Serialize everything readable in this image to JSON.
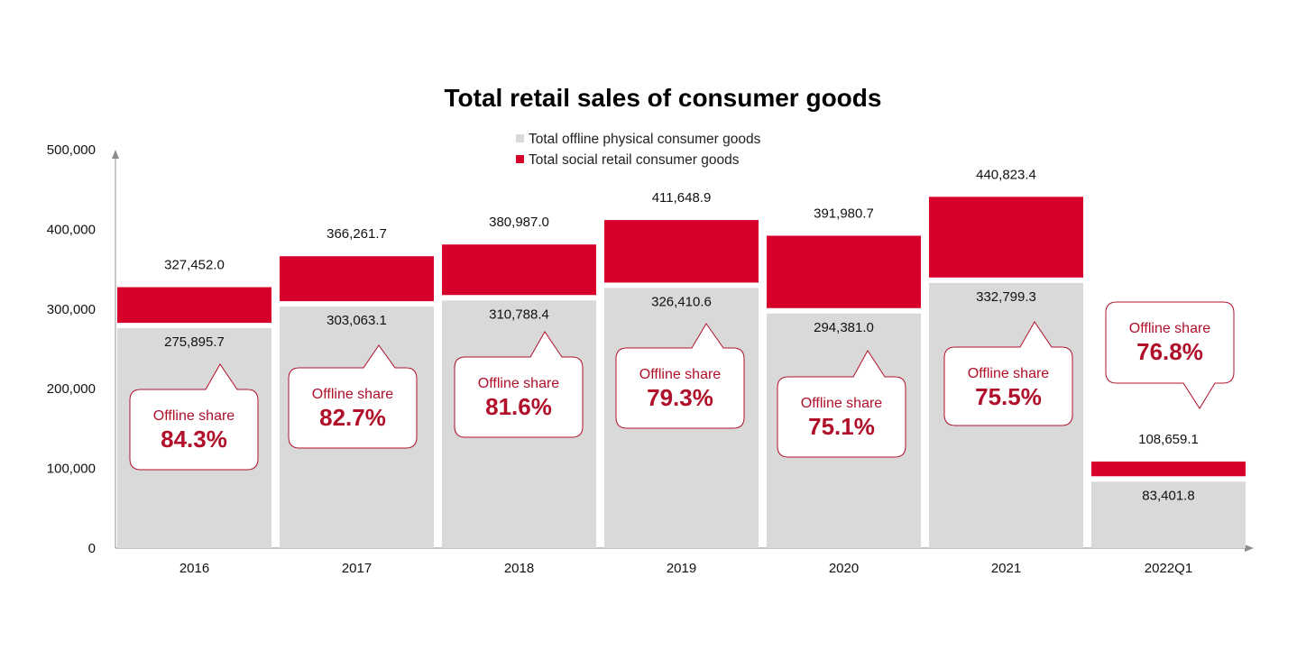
{
  "chart_data": {
    "type": "bar",
    "title": "Total retail sales of consumer goods",
    "categories": [
      "2016",
      "2017",
      "2018",
      "2019",
      "2020",
      "2021",
      "2022Q1"
    ],
    "series": [
      {
        "name": "Total offline physical consumer goods",
        "values": [
          275895.7,
          303063.1,
          310788.4,
          326410.6,
          294381.0,
          332799.3,
          83401.8
        ],
        "labels": [
          "275,895.7",
          "303,063.1",
          "310,788.4",
          "326,410.6",
          "294,381.0",
          "332,799.3",
          "83,401.8"
        ],
        "color": "#d9d9d9"
      },
      {
        "name": "Total social retail consumer goods",
        "values": [
          327452.0,
          366261.7,
          380987.0,
          411648.9,
          391980.7,
          440823.4,
          108659.1
        ],
        "labels": [
          "327,452.0",
          "366,261.7",
          "380,987.0",
          "411,648.9",
          "391,980.7",
          "440,823.4",
          "108,659.1"
        ],
        "color": "#d7002a"
      }
    ],
    "yticks": [
      {
        "value": 0,
        "label": "0"
      },
      {
        "value": 100000,
        "label": "100,000"
      },
      {
        "value": 200000,
        "label": "200,000"
      },
      {
        "value": 300000,
        "label": "300,000"
      },
      {
        "value": 400000,
        "label": "400,000"
      },
      {
        "value": 500000,
        "label": "500,000"
      }
    ],
    "ylim": [
      0,
      500000
    ],
    "grid": false,
    "legend_position": "top-center",
    "annotations": {
      "label": "Offline share",
      "values": [
        "84.3%",
        "82.7%",
        "81.6%",
        "79.3%",
        "75.1%",
        "75.5%",
        "76.8%"
      ]
    }
  }
}
